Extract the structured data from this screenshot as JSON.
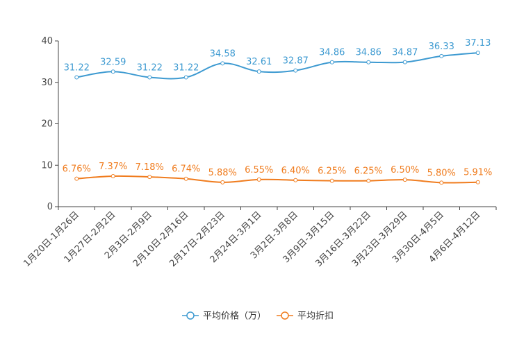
{
  "chart_data": {
    "type": "line",
    "title": "",
    "xlabel": "",
    "ylabel": "",
    "ylim": [
      0,
      40
    ],
    "yticks": [
      0,
      10,
      20,
      30,
      40
    ],
    "legend_position": "bottom",
    "categories": [
      "1月20日-1月26日",
      "1月27日-2月2日",
      "2月3日-2月9日",
      "2月10日-2月16日",
      "2月17日-2月23日",
      "2月24日-3月1日",
      "3月2日-3月8日",
      "3月9日-3月15日",
      "3月16日-3月22日",
      "3月23日-3月29日",
      "3月30日-4月5日",
      "4月6日-4月12日"
    ],
    "series": [
      {
        "name": "平均价格（万）",
        "color": "#3d9ad1",
        "values": [
          31.22,
          32.59,
          31.22,
          31.22,
          34.58,
          32.61,
          32.87,
          34.86,
          34.86,
          34.87,
          36.33,
          37.13
        ],
        "labels": [
          "31.22",
          "32.59",
          "31.22",
          "31.22",
          "34.58",
          "32.61",
          "32.87",
          "34.86",
          "34.86",
          "34.87",
          "36.33",
          "37.13"
        ]
      },
      {
        "name": "平均折扣",
        "color": "#f07c1e",
        "values": [
          6.76,
          7.37,
          7.18,
          6.74,
          5.88,
          6.55,
          6.4,
          6.25,
          6.25,
          6.5,
          5.8,
          5.91
        ],
        "labels": [
          "6.76%",
          "7.37%",
          "7.18%",
          "6.74%",
          "5.88%",
          "6.55%",
          "6.40%",
          "6.25%",
          "6.25%",
          "6.50%",
          "5.80%",
          "5.91%"
        ]
      }
    ]
  }
}
